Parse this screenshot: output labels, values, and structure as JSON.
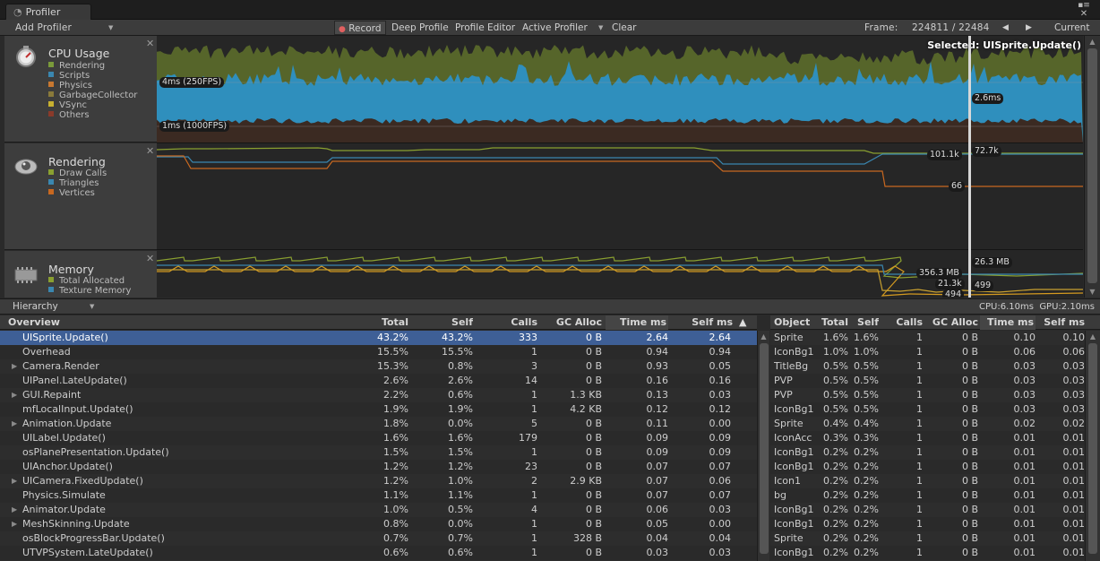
{
  "window": {
    "tab_title": "Profiler",
    "menu_icon": "menu-icon",
    "close_icon": "close-icon"
  },
  "toolbar": {
    "add_profiler": "Add Profiler",
    "record": "Record",
    "deep_profile": "Deep Profile",
    "profile_editor": "Profile Editor",
    "active_profiler": "Active Profiler",
    "clear": "Clear",
    "frame_label": "Frame:",
    "frame_value": "224811 / 22484",
    "current": "Current"
  },
  "modules": {
    "cpu": {
      "title": "CPU Usage",
      "legend": [
        {
          "label": "Rendering",
          "color": "#7a9a3a"
        },
        {
          "label": "Scripts",
          "color": "#3a87b0"
        },
        {
          "label": "Physics",
          "color": "#c87830"
        },
        {
          "label": "GarbageCollector",
          "color": "#8a7a3a"
        },
        {
          "label": "VSync",
          "color": "#c8b030"
        },
        {
          "label": "Others",
          "color": "#8a3a2a"
        }
      ]
    },
    "rendering": {
      "title": "Rendering",
      "legend": [
        {
          "label": "Draw Calls",
          "color": "#8aa030"
        },
        {
          "label": "Triangles",
          "color": "#3a87b0"
        },
        {
          "label": "Vertices",
          "color": "#c86820"
        }
      ]
    },
    "memory": {
      "title": "Memory",
      "legend": [
        {
          "label": "Total Allocated",
          "color": "#8aa030"
        },
        {
          "label": "Texture Memory",
          "color": "#3a87b0"
        }
      ]
    }
  },
  "graph": {
    "selected": "Selected: UISprite.Update()",
    "cpu_line_top": "4ms (250FPS)",
    "cpu_line_bottom": "1ms (1000FPS)",
    "cpu_value": "2.6ms",
    "render_value_1": "101.1k",
    "render_value_2": "72.7k",
    "render_value_3": "66",
    "mem_value_1": "26.3 MB",
    "mem_value_2": "356.3 MB",
    "mem_value_3": "21.3k",
    "mem_value_4": "499",
    "mem_value_5": "494"
  },
  "hierarchy_bar": {
    "mode": "Hierarchy",
    "cpu": "CPU:6.10ms",
    "gpu": "GPU:2.10ms"
  },
  "overview": {
    "headers": [
      "Overview",
      "Total",
      "Self",
      "Calls",
      "GC Alloc",
      "Time ms",
      "Self ms",
      "▲"
    ],
    "rows": [
      {
        "name": "UISprite.Update()",
        "total": "43.2%",
        "self": "43.2%",
        "calls": "333",
        "gc": "0 B",
        "time": "2.64",
        "selfms": "2.64",
        "expand": false
      },
      {
        "name": "Overhead",
        "total": "15.5%",
        "self": "15.5%",
        "calls": "1",
        "gc": "0 B",
        "time": "0.94",
        "selfms": "0.94",
        "expand": false
      },
      {
        "name": "Camera.Render",
        "total": "15.3%",
        "self": "0.8%",
        "calls": "3",
        "gc": "0 B",
        "time": "0.93",
        "selfms": "0.05",
        "expand": true
      },
      {
        "name": "UIPanel.LateUpdate()",
        "total": "2.6%",
        "self": "2.6%",
        "calls": "14",
        "gc": "0 B",
        "time": "0.16",
        "selfms": "0.16",
        "expand": false
      },
      {
        "name": "GUI.Repaint",
        "total": "2.2%",
        "self": "0.6%",
        "calls": "1",
        "gc": "1.3 KB",
        "time": "0.13",
        "selfms": "0.03",
        "expand": true
      },
      {
        "name": "mfLocalInput.Update()",
        "total": "1.9%",
        "self": "1.9%",
        "calls": "1",
        "gc": "4.2 KB",
        "time": "0.12",
        "selfms": "0.12",
        "expand": false
      },
      {
        "name": "Animation.Update",
        "total": "1.8%",
        "self": "0.0%",
        "calls": "5",
        "gc": "0 B",
        "time": "0.11",
        "selfms": "0.00",
        "expand": true
      },
      {
        "name": "UILabel.Update()",
        "total": "1.6%",
        "self": "1.6%",
        "calls": "179",
        "gc": "0 B",
        "time": "0.09",
        "selfms": "0.09",
        "expand": false
      },
      {
        "name": "osPlanePresentation.Update()",
        "total": "1.5%",
        "self": "1.5%",
        "calls": "1",
        "gc": "0 B",
        "time": "0.09",
        "selfms": "0.09",
        "expand": false
      },
      {
        "name": "UIAnchor.Update()",
        "total": "1.2%",
        "self": "1.2%",
        "calls": "23",
        "gc": "0 B",
        "time": "0.07",
        "selfms": "0.07",
        "expand": false
      },
      {
        "name": "UICamera.FixedUpdate()",
        "total": "1.2%",
        "self": "1.0%",
        "calls": "2",
        "gc": "2.9 KB",
        "time": "0.07",
        "selfms": "0.06",
        "expand": true
      },
      {
        "name": "Physics.Simulate",
        "total": "1.1%",
        "self": "1.1%",
        "calls": "1",
        "gc": "0 B",
        "time": "0.07",
        "selfms": "0.07",
        "expand": false
      },
      {
        "name": "Animator.Update",
        "total": "1.0%",
        "self": "0.5%",
        "calls": "4",
        "gc": "0 B",
        "time": "0.06",
        "selfms": "0.03",
        "expand": true
      },
      {
        "name": "MeshSkinning.Update",
        "total": "0.8%",
        "self": "0.0%",
        "calls": "1",
        "gc": "0 B",
        "time": "0.05",
        "selfms": "0.00",
        "expand": true
      },
      {
        "name": "osBlockProgressBar.Update()",
        "total": "0.7%",
        "self": "0.7%",
        "calls": "1",
        "gc": "328 B",
        "time": "0.04",
        "selfms": "0.04",
        "expand": false
      },
      {
        "name": "UTVPSystem.LateUpdate()",
        "total": "0.6%",
        "self": "0.6%",
        "calls": "1",
        "gc": "0 B",
        "time": "0.03",
        "selfms": "0.03",
        "expand": false
      }
    ]
  },
  "objects": {
    "headers": [
      "Object",
      "Total",
      "Self",
      "Calls",
      "GC Alloc",
      "Time ms",
      "Self ms"
    ],
    "rows": [
      {
        "name": "Sprite",
        "total": "1.6%",
        "self": "1.6%",
        "calls": "1",
        "gc": "0 B",
        "time": "0.10",
        "selfms": "0.10"
      },
      {
        "name": "IconBg1",
        "total": "1.0%",
        "self": "1.0%",
        "calls": "1",
        "gc": "0 B",
        "time": "0.06",
        "selfms": "0.06"
      },
      {
        "name": "TitleBg",
        "total": "0.5%",
        "self": "0.5%",
        "calls": "1",
        "gc": "0 B",
        "time": "0.03",
        "selfms": "0.03"
      },
      {
        "name": "PVP",
        "total": "0.5%",
        "self": "0.5%",
        "calls": "1",
        "gc": "0 B",
        "time": "0.03",
        "selfms": "0.03"
      },
      {
        "name": "PVP",
        "total": "0.5%",
        "self": "0.5%",
        "calls": "1",
        "gc": "0 B",
        "time": "0.03",
        "selfms": "0.03"
      },
      {
        "name": "IconBg1",
        "total": "0.5%",
        "self": "0.5%",
        "calls": "1",
        "gc": "0 B",
        "time": "0.03",
        "selfms": "0.03"
      },
      {
        "name": "Sprite",
        "total": "0.4%",
        "self": "0.4%",
        "calls": "1",
        "gc": "0 B",
        "time": "0.02",
        "selfms": "0.02"
      },
      {
        "name": "IconAcc",
        "total": "0.3%",
        "self": "0.3%",
        "calls": "1",
        "gc": "0 B",
        "time": "0.01",
        "selfms": "0.01"
      },
      {
        "name": "IconBg1",
        "total": "0.2%",
        "self": "0.2%",
        "calls": "1",
        "gc": "0 B",
        "time": "0.01",
        "selfms": "0.01"
      },
      {
        "name": "IconBg1",
        "total": "0.2%",
        "self": "0.2%",
        "calls": "1",
        "gc": "0 B",
        "time": "0.01",
        "selfms": "0.01"
      },
      {
        "name": "Icon1",
        "total": "0.2%",
        "self": "0.2%",
        "calls": "1",
        "gc": "0 B",
        "time": "0.01",
        "selfms": "0.01"
      },
      {
        "name": "bg",
        "total": "0.2%",
        "self": "0.2%",
        "calls": "1",
        "gc": "0 B",
        "time": "0.01",
        "selfms": "0.01"
      },
      {
        "name": "IconBg1",
        "total": "0.2%",
        "self": "0.2%",
        "calls": "1",
        "gc": "0 B",
        "time": "0.01",
        "selfms": "0.01"
      },
      {
        "name": "IconBg1",
        "total": "0.2%",
        "self": "0.2%",
        "calls": "1",
        "gc": "0 B",
        "time": "0.01",
        "selfms": "0.01"
      },
      {
        "name": "Sprite",
        "total": "0.2%",
        "self": "0.2%",
        "calls": "1",
        "gc": "0 B",
        "time": "0.01",
        "selfms": "0.01"
      },
      {
        "name": "IconBg1",
        "total": "0.2%",
        "self": "0.2%",
        "calls": "1",
        "gc": "0 B",
        "time": "0.01",
        "selfms": "0.01"
      }
    ]
  }
}
